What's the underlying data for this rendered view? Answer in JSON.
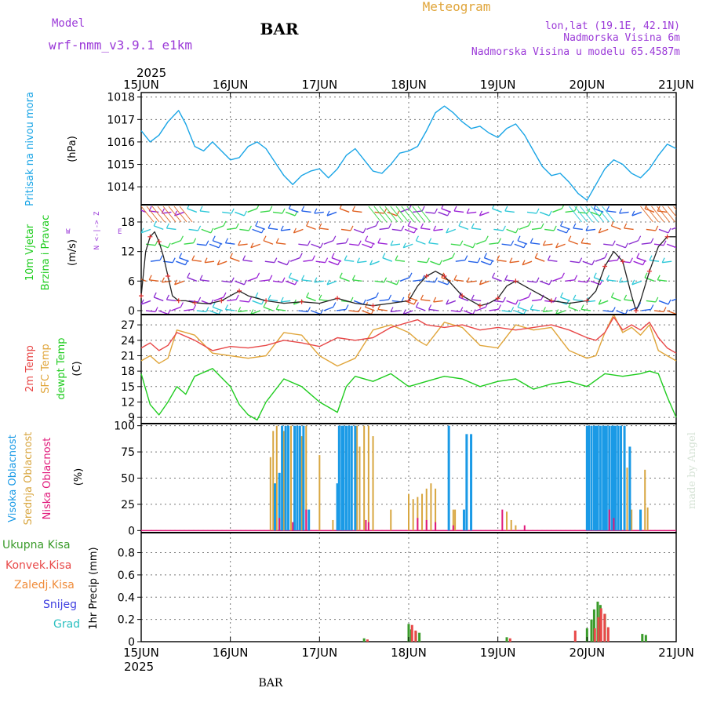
{
  "header": {
    "model_label": "Model",
    "model_name": "wrf-nmm_v3.9.1 e1km",
    "station": "BAR",
    "product": "Meteogram",
    "lonlat": "lon,lat (19.1E, 42.1N)",
    "elev": "Nadmorska Visina 6m",
    "model_elev": "Nadmorska Visina u modelu 65.4587m",
    "footer_station": "BAR",
    "credit": "made by Angel"
  },
  "colors": {
    "pressure": "#1aa5e6",
    "temp2m": "#e84848",
    "sfc": "#e0a53a",
    "dew": "#1fcc1f",
    "high": "#1a9ae6",
    "mid": "#d8a640",
    "low": "#e0187a",
    "total": "#3a9b2a",
    "conv": "#e84848",
    "frozen": "#f08c3a",
    "snow": "#4040e0",
    "grad": "#2ac0c0",
    "purple": "#9b3ad8"
  },
  "time_axis": {
    "year": "2025",
    "top_labels": [
      "15JUN",
      "16JUN",
      "17JUN",
      "18JUN",
      "19JUN",
      "20JUN",
      "21JUN"
    ],
    "bottom_labels": [
      "15JUN",
      "16JUN",
      "17JUN",
      "18JUN",
      "19JUN",
      "20JUN",
      "21JUN"
    ]
  },
  "panels": {
    "pressure": {
      "ylabel_main": "Pritisak na nivou mora",
      "ylabel_unit": "(hPa)",
      "ticks": [
        "1014",
        "1015",
        "1016",
        "1017",
        "1018"
      ]
    },
    "wind": {
      "ylabel_1": "10m Vjetar",
      "ylabel_2": "Brzina i Pravac",
      "ylabel_unit": "(m/s)",
      "compass_n": "N <-|-> Z",
      "compass_w": "W",
      "compass_e": "E",
      "compass_s": "S <-|->",
      "ticks": [
        "0",
        "6",
        "12",
        "18"
      ]
    },
    "temp": {
      "ylabel_1": "2m Temp",
      "ylabel_2": "SFC Temp",
      "ylabel_3": "dewpt Temp",
      "ylabel_unit": "(C)",
      "ticks": [
        "9",
        "12",
        "15",
        "18",
        "21",
        "24",
        "27"
      ]
    },
    "cloud": {
      "ylabel_1": "Visoka Oblacnost",
      "ylabel_2": "Srednja Oblacnost",
      "ylabel_3": "Niska Oblacnost",
      "ylabel_unit": "(%)",
      "ticks": [
        "0",
        "25",
        "50",
        "75",
        "100"
      ]
    },
    "precip": {
      "legend": [
        "Ukupna Kisa",
        "Konvek.Kisa",
        "Zaledj.Kisa",
        "Snijeg",
        "Grad"
      ],
      "ylabel_main": "1hr Precip (mm)",
      "ticks": [
        "0",
        "0.2",
        "0.4",
        "0.6",
        "0.8"
      ]
    }
  },
  "chart_data": [
    {
      "type": "line",
      "title": "",
      "ylabel": "Pritisak na nivou mora (hPa)",
      "ylim": [
        1013.2,
        1018.2
      ],
      "x_unit": "days since 15JUN 00Z",
      "series": [
        {
          "name": "Pritisak na nivou mora",
          "x": [
            0,
            0.1,
            0.2,
            0.3,
            0.42,
            0.5,
            0.6,
            0.7,
            0.8,
            0.9,
            1.0,
            1.1,
            1.2,
            1.3,
            1.4,
            1.5,
            1.6,
            1.7,
            1.8,
            1.9,
            2.0,
            2.1,
            2.2,
            2.3,
            2.4,
            2.5,
            2.6,
            2.7,
            2.8,
            2.9,
            3.0,
            3.1,
            3.2,
            3.3,
            3.4,
            3.5,
            3.6,
            3.7,
            3.8,
            3.9,
            4.0,
            4.1,
            4.2,
            4.3,
            4.4,
            4.5,
            4.6,
            4.7,
            4.8,
            4.9,
            5.0,
            5.1,
            5.2,
            5.3,
            5.4,
            5.5,
            5.6,
            5.7,
            5.8,
            5.9,
            6.0
          ],
          "y": [
            1016.5,
            1016.0,
            1016.3,
            1016.9,
            1017.4,
            1016.8,
            1015.8,
            1015.6,
            1016.0,
            1015.6,
            1015.2,
            1015.3,
            1015.8,
            1016.0,
            1015.7,
            1015.1,
            1014.5,
            1014.1,
            1014.5,
            1014.7,
            1014.8,
            1014.4,
            1014.8,
            1015.4,
            1015.7,
            1015.2,
            1014.7,
            1014.6,
            1015.0,
            1015.5,
            1015.6,
            1015.8,
            1016.5,
            1017.3,
            1017.6,
            1017.3,
            1016.9,
            1016.6,
            1016.7,
            1016.4,
            1016.2,
            1016.6,
            1016.8,
            1016.3,
            1015.6,
            1014.9,
            1014.5,
            1014.6,
            1014.2,
            1013.7,
            1013.4,
            1014.1,
            1014.8,
            1015.2,
            1015.0,
            1014.6,
            1014.4,
            1014.8,
            1015.4,
            1015.9,
            1015.7
          ]
        }
      ]
    },
    {
      "type": "line",
      "title": "",
      "ylabel": "10m Vjetar Brzina i Pravac (m/s)",
      "ylim": [
        -0.8,
        21.5
      ],
      "x_unit": "days since 15JUN 00Z",
      "series": [
        {
          "name": "10m Vjetar",
          "x": [
            0,
            0.05,
            0.1,
            0.15,
            0.2,
            0.25,
            0.3,
            0.35,
            0.42,
            0.5,
            0.6,
            0.75,
            0.9,
            1.0,
            1.1,
            1.2,
            1.4,
            1.6,
            1.8,
            2.0,
            2.2,
            2.4,
            2.6,
            2.8,
            3.0,
            3.1,
            3.2,
            3.3,
            3.4,
            3.5,
            3.6,
            3.7,
            3.8,
            3.9,
            4.0,
            4.1,
            4.2,
            4.4,
            4.6,
            4.8,
            5.0,
            5.1,
            5.2,
            5.3,
            5.4,
            5.5,
            5.55,
            5.6,
            5.7,
            5.8,
            5.9,
            6.0
          ],
          "y": [
            3,
            12,
            15,
            16,
            14,
            11,
            7,
            3,
            2,
            2,
            1.6,
            1.4,
            2,
            3,
            4,
            3,
            2,
            1.5,
            1.8,
            1.5,
            2.5,
            1.5,
            1,
            1.5,
            2,
            5,
            7,
            8,
            7,
            5,
            3,
            2,
            1,
            1.5,
            2.5,
            5,
            6,
            4,
            2,
            1.5,
            2,
            4,
            9,
            12,
            10,
            3,
            0,
            2,
            8,
            13,
            15,
            15
          ]
        }
      ]
    },
    {
      "type": "line",
      "title": "",
      "ylabel": "(C)",
      "ylim": [
        7.8,
        29.0
      ],
      "x_unit": "days since 15JUN 00Z",
      "series": [
        {
          "name": "2m Temp",
          "x": [
            0,
            0.1,
            0.2,
            0.3,
            0.4,
            0.6,
            0.8,
            1.0,
            1.2,
            1.4,
            1.6,
            1.8,
            2.0,
            2.2,
            2.4,
            2.6,
            2.8,
            3.0,
            3.1,
            3.2,
            3.4,
            3.6,
            3.8,
            4.0,
            4.2,
            4.4,
            4.6,
            4.8,
            5.0,
            5.1,
            5.2,
            5.3,
            5.4,
            5.5,
            5.6,
            5.7,
            5.8,
            5.9,
            6.0
          ],
          "y": [
            22.5,
            23.5,
            22.0,
            23.0,
            25.5,
            24.0,
            22.0,
            22.8,
            22.5,
            23.0,
            24.0,
            23.5,
            22.8,
            24.5,
            24.0,
            24.5,
            26.5,
            27.5,
            28.0,
            27.0,
            26.5,
            27.0,
            26.0,
            26.5,
            26.0,
            26.5,
            27.0,
            26.0,
            24.5,
            24.0,
            25.5,
            28.5,
            26.0,
            27.0,
            26.0,
            27.5,
            24.5,
            22.5,
            21.5
          ]
        },
        {
          "name": "SFC Temp",
          "x": [
            0,
            0.1,
            0.2,
            0.3,
            0.4,
            0.6,
            0.8,
            1.0,
            1.2,
            1.4,
            1.6,
            1.8,
            2.0,
            2.2,
            2.4,
            2.6,
            2.8,
            3.0,
            3.1,
            3.2,
            3.4,
            3.6,
            3.8,
            4.0,
            4.2,
            4.4,
            4.6,
            4.8,
            5.0,
            5.1,
            5.2,
            5.3,
            5.4,
            5.5,
            5.6,
            5.7,
            5.8,
            5.9,
            6.0
          ],
          "y": [
            20.0,
            21.0,
            19.5,
            20.5,
            26.0,
            25.0,
            21.5,
            21.0,
            20.5,
            21.0,
            25.5,
            25.0,
            21.0,
            19.0,
            20.5,
            26.0,
            27.0,
            25.5,
            24.0,
            23.0,
            27.5,
            26.5,
            23.0,
            22.5,
            27.0,
            26.0,
            26.5,
            22.0,
            20.5,
            21.0,
            25.5,
            29.0,
            25.5,
            26.5,
            25.0,
            27.0,
            22.0,
            21.0,
            20.0
          ]
        },
        {
          "name": "dewpt Temp",
          "x": [
            0,
            0.1,
            0.2,
            0.3,
            0.4,
            0.5,
            0.6,
            0.8,
            1.0,
            1.1,
            1.2,
            1.3,
            1.4,
            1.6,
            1.8,
            2.0,
            2.1,
            2.2,
            2.3,
            2.4,
            2.6,
            2.8,
            3.0,
            3.2,
            3.4,
            3.6,
            3.8,
            4.0,
            4.2,
            4.4,
            4.6,
            4.8,
            5.0,
            5.2,
            5.4,
            5.6,
            5.7,
            5.8,
            5.9,
            6.0
          ],
          "y": [
            17.5,
            11.5,
            9.5,
            12.0,
            15.0,
            13.5,
            17.0,
            18.5,
            15.0,
            11.5,
            9.5,
            8.5,
            12.0,
            16.5,
            15.0,
            12.0,
            11.0,
            10.0,
            15.0,
            17.0,
            16.0,
            17.5,
            15.0,
            16.0,
            17.0,
            16.5,
            15.0,
            16.0,
            16.5,
            14.5,
            15.5,
            16.0,
            15.0,
            17.5,
            17.0,
            17.5,
            18.0,
            17.5,
            13.0,
            9.0
          ]
        }
      ]
    },
    {
      "type": "bar",
      "title": "",
      "ylabel": "(%)",
      "ylim": [
        -2,
        102
      ],
      "x_unit": "days since 15JUN 00Z",
      "series": [
        {
          "name": "Visoka Oblacnost",
          "x": [
            1.5,
            1.55,
            1.58,
            1.62,
            1.65,
            1.72,
            1.75,
            1.78,
            1.82,
            1.88,
            2.2,
            2.22,
            2.25,
            2.27,
            2.3,
            2.33,
            2.36,
            2.4,
            3.45,
            3.62,
            3.65,
            3.7,
            5.0,
            5.02,
            5.05,
            5.08,
            5.1,
            5.12,
            5.15,
            5.18,
            5.2,
            5.22,
            5.25,
            5.28,
            5.3,
            5.32,
            5.35,
            5.38,
            5.42,
            5.48,
            5.6
          ],
          "values": [
            45,
            55,
            100,
            100,
            100,
            100,
            100,
            100,
            100,
            20,
            45,
            100,
            100,
            100,
            100,
            100,
            100,
            100,
            100,
            20,
            92,
            92,
            100,
            100,
            100,
            100,
            100,
            100,
            100,
            100,
            100,
            100,
            100,
            100,
            100,
            100,
            100,
            100,
            100,
            80,
            20
          ]
        },
        {
          "name": "Srednja Oblacnost",
          "x": [
            1.45,
            1.48,
            1.52,
            1.6,
            1.68,
            1.8,
            1.85,
            2.0,
            2.15,
            2.42,
            2.45,
            2.5,
            2.55,
            2.6,
            2.8,
            3.0,
            3.05,
            3.1,
            3.15,
            3.2,
            3.25,
            3.3,
            3.5,
            3.52,
            4.1,
            4.15,
            4.2,
            5.08,
            5.3,
            5.45,
            5.5,
            5.65,
            5.68
          ],
          "values": [
            70,
            95,
            100,
            95,
            100,
            90,
            100,
            72,
            10,
            100,
            80,
            100,
            100,
            90,
            20,
            35,
            30,
            32,
            35,
            40,
            45,
            40,
            20,
            20,
            18,
            10,
            5,
            80,
            90,
            60,
            20,
            58,
            22
          ]
        },
        {
          "name": "Niska Oblacnost",
          "x": [
            1.55,
            1.7,
            1.85,
            2.52,
            2.55,
            3.1,
            3.2,
            3.3,
            3.5,
            4.05,
            4.3,
            5.25,
            5.3
          ],
          "values": [
            12,
            8,
            20,
            10,
            8,
            12,
            10,
            8,
            5,
            20,
            5,
            20,
            12
          ]
        }
      ]
    },
    {
      "type": "bar",
      "title": "",
      "ylabel": "1hr Precip (mm)",
      "ylim": [
        0,
        0.98
      ],
      "x_unit": "days since 15JUN 00Z",
      "series": [
        {
          "name": "Ukupna Kisa",
          "x": [
            2.5,
            3.0,
            3.03,
            3.08,
            3.12,
            4.1,
            5.0,
            5.05,
            5.08,
            5.12,
            5.15,
            5.2,
            5.62,
            5.66
          ],
          "values": [
            0.03,
            0.16,
            0.11,
            0.09,
            0.08,
            0.04,
            0.12,
            0.2,
            0.29,
            0.36,
            0.33,
            0.25,
            0.07,
            0.06
          ]
        },
        {
          "name": "Konvek.Kisa",
          "x": [
            2.52,
            3.02,
            3.06,
            4.12,
            4.85,
            5.07,
            5.11,
            5.14,
            5.18,
            5.22
          ],
          "values": [
            0.02,
            0.15,
            0.1,
            0.03,
            0.1,
            0.12,
            0.22,
            0.3,
            0.25,
            0.13
          ]
        }
      ]
    }
  ]
}
